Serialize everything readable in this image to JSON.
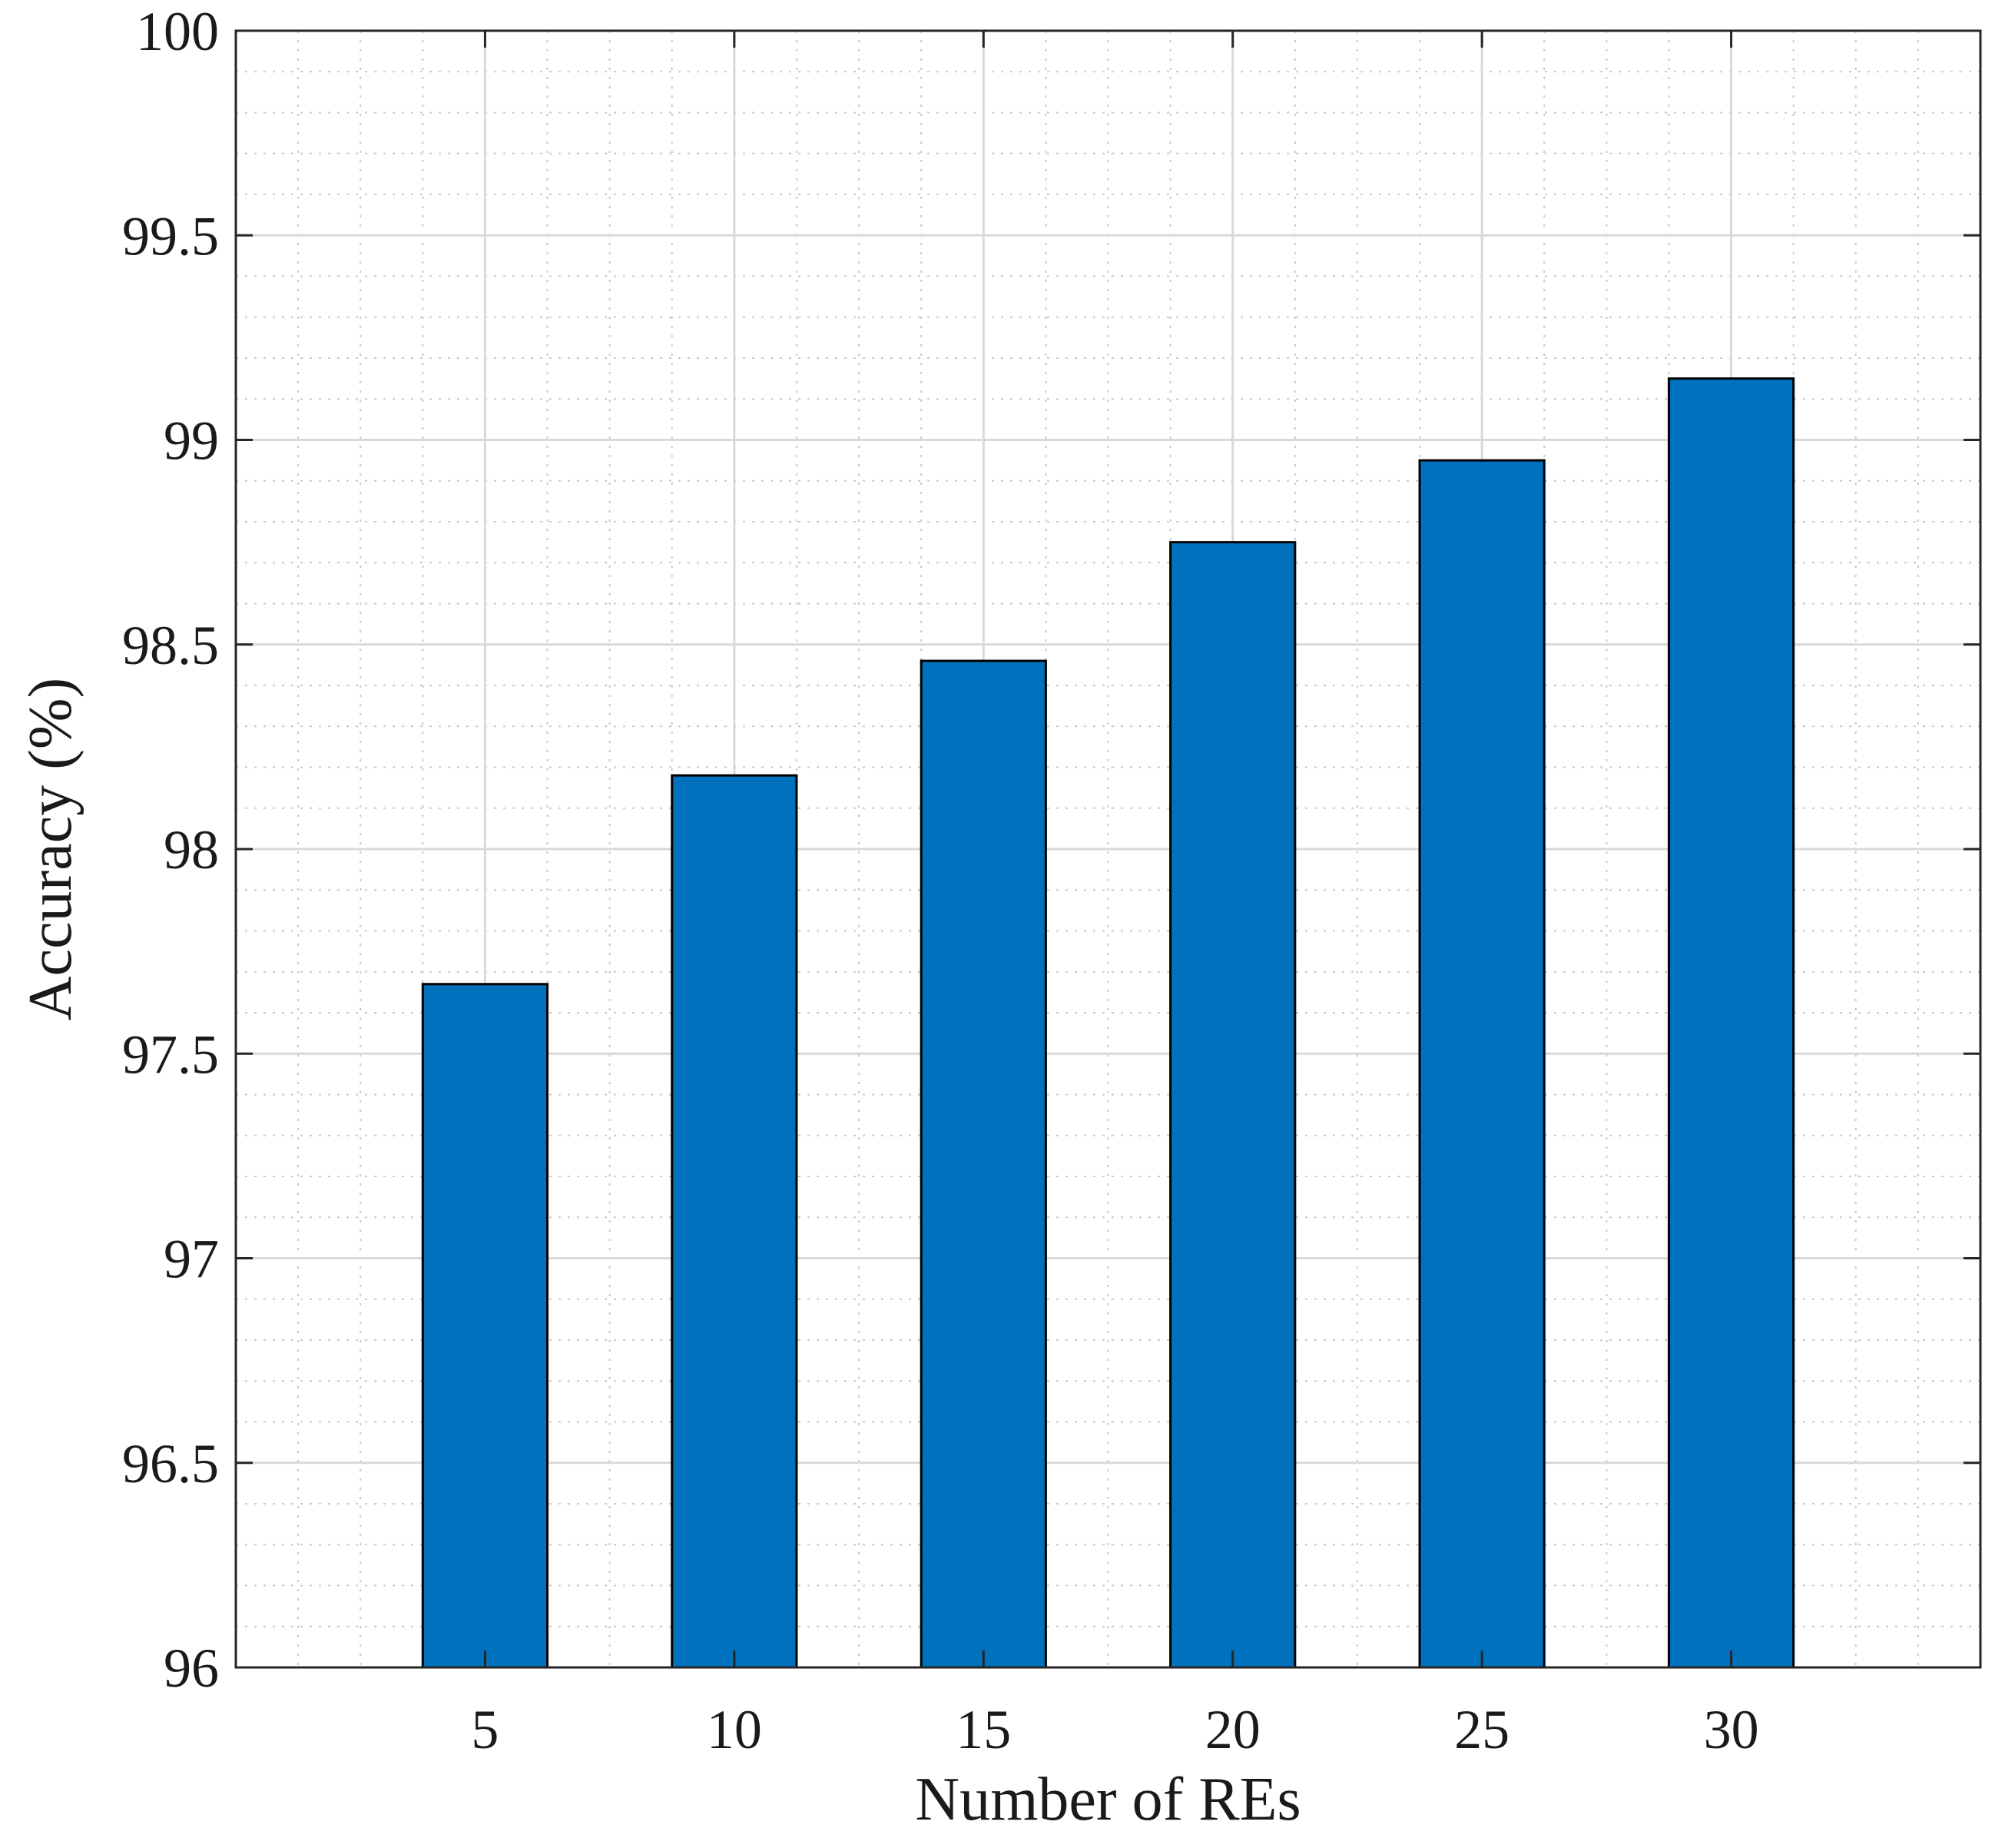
{
  "chart_data": {
    "type": "bar",
    "title": "",
    "xlabel": "Number of REs",
    "ylabel": "Accuracy (%)",
    "categories": [
      "5",
      "10",
      "15",
      "20",
      "25",
      "30"
    ],
    "x": [
      5,
      10,
      15,
      20,
      25,
      30
    ],
    "values": [
      97.67,
      98.18,
      98.46,
      98.75,
      98.95,
      99.15
    ],
    "xlim": [
      0,
      35
    ],
    "ylim": [
      96,
      100
    ],
    "yticks": [
      96,
      96.5,
      97,
      97.5,
      98,
      98.5,
      99,
      99.5,
      100
    ],
    "ytick_labels": [
      "96",
      "96.5",
      "97",
      "97.5",
      "98",
      "98.5",
      "99",
      "99.5",
      "100"
    ],
    "grid": true,
    "minor_grid": true,
    "bar_color": "#0072BD",
    "bar_edge_color": "#000000"
  }
}
